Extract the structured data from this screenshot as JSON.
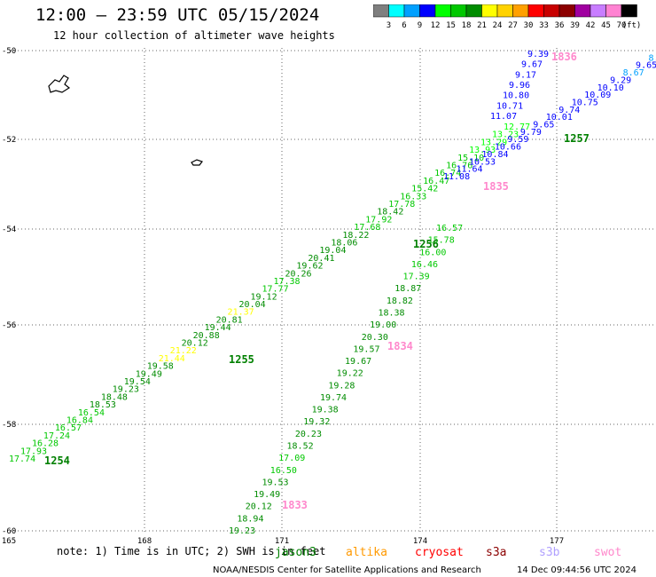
{
  "header": {
    "title": "12:00 – 23:59 UTC 05/15/2024",
    "subtitle": "12 hour collection of altimeter wave heights"
  },
  "colorbar": {
    "labels": [
      "3",
      "6",
      "9",
      "12",
      "15",
      "18",
      "21",
      "24",
      "27",
      "30",
      "33",
      "36",
      "39",
      "42",
      "45",
      "70"
    ],
    "unit": "(ft)",
    "colors": [
      "#7f7f7f",
      "#00ffff",
      "#00a0ff",
      "#0000ff",
      "#00ff00",
      "#00c800",
      "#008c00",
      "#ffff00",
      "#ffd200",
      "#ffa000",
      "#ff0000",
      "#c80000",
      "#8c0000",
      "#a000a0",
      "#c87dff",
      "#ff82d2",
      "#000000"
    ]
  },
  "axes": {
    "lat_labels": [
      "-50",
      "-52",
      "-54",
      "-56",
      "-58",
      "-60"
    ],
    "lon_labels": [
      "165",
      "168",
      "171",
      "174",
      "177"
    ]
  },
  "tracks": [
    {
      "id": "1254",
      "label_color": "#008000",
      "values": [
        "17.74",
        "17.93",
        "16.28",
        "17.24",
        "16.57",
        "16.84",
        "16.54",
        "18.53",
        "18.48",
        "19.23",
        "19.54",
        "19.49",
        "19.58",
        "21.44",
        "21.22",
        "20.12",
        "20.88",
        "19.44",
        "20.81",
        "21.37",
        "20.04",
        "19.12",
        "17.77",
        "17.38",
        "20.26",
        "19.62",
        "20.41",
        "19.04",
        "18.06",
        "18.22",
        "17.68",
        "17.92",
        "18.42",
        "17.78",
        "16.33",
        "15.42",
        "16.47",
        "16.74",
        "16.76",
        "15.10",
        "13.93",
        "13.29",
        "13.23",
        "12.77"
      ]
    },
    {
      "id": "1255",
      "label_color": "#008000",
      "values": []
    },
    {
      "id": "1256",
      "label_color": "#008000",
      "values": [
        "19.23",
        "18.94",
        "20.12",
        "19.49",
        "19.53",
        "16.50",
        "17.09",
        "18.52",
        "20.23",
        "19.32",
        "19.38",
        "19.74",
        "19.28",
        "19.22",
        "19.67",
        "19.57",
        "20.30",
        "19.00",
        "18.38",
        "18.82",
        "18.87",
        "17.39",
        "16.46",
        "16.00",
        "15.78",
        "16.57"
      ]
    },
    {
      "id": "1257",
      "label_color": "#008000",
      "values": [
        "11.08",
        "11.64",
        "10.53",
        "10.84",
        "10.66",
        "9.59",
        "9.79",
        "9.65",
        "10.01",
        "9.74",
        "10.75",
        "10.09",
        "10.10",
        "9.29",
        "8.67",
        "9.65",
        "8.70",
        "9.20"
      ]
    },
    {
      "id": "1833",
      "label_color": "#ff88cc",
      "values": []
    },
    {
      "id": "1834",
      "label_color": "#ff88cc",
      "values": []
    },
    {
      "id": "1835",
      "label_color": "#ff88cc",
      "values": [
        "9.39",
        "9.67",
        "9.17",
        "9.96",
        "10.80",
        "10.71",
        "11.07"
      ]
    },
    {
      "id": "1836",
      "label_color": "#ff88cc",
      "values": []
    }
  ],
  "footer": {
    "note": "note:  1) Time is in UTC; 2) SWH is in feet",
    "satellites": [
      {
        "name": "jason3",
        "color": "#008000"
      },
      {
        "name": "altika",
        "color": "#ff9900"
      },
      {
        "name": "cryosat",
        "color": "#ff0000"
      },
      {
        "name": "s3a",
        "color": "#8b0000"
      },
      {
        "name": "s3b",
        "color": "#b0a0ff"
      },
      {
        "name": "swot",
        "color": "#ff88cc"
      }
    ],
    "credit": "NOAA/NESDIS Center for Satellite Applications and Research",
    "timestamp": "14 Dec 09:44:56 UTC 2024"
  }
}
